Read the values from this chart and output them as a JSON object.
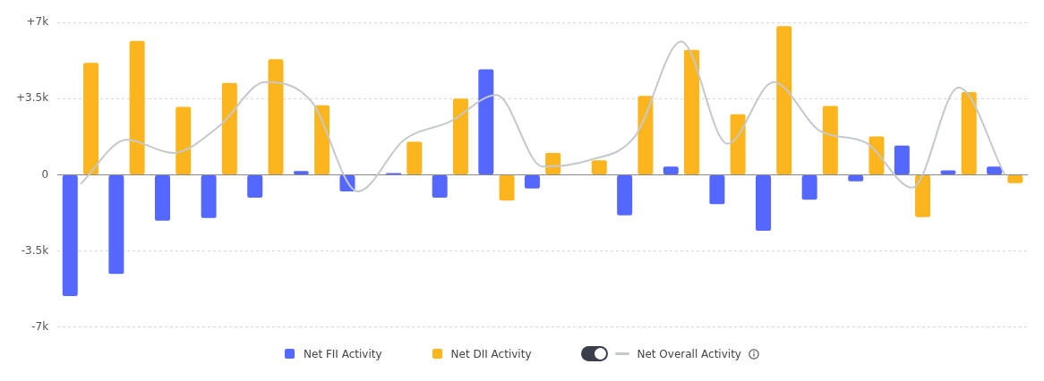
{
  "chart_data": {
    "type": "bar",
    "categories": [
      null,
      null,
      null,
      null,
      null,
      null,
      null,
      null,
      null,
      null,
      null,
      null,
      null,
      null,
      null,
      null,
      null,
      null,
      null,
      null,
      null
    ],
    "series": [
      {
        "name": "Net FII Activity",
        "color": "#5468ff",
        "values": [
          -5.57,
          -4.55,
          -2.11,
          -1.98,
          -1.05,
          0.17,
          -0.76,
          0.08,
          -1.05,
          4.85,
          -0.63,
          0,
          -1.86,
          0.38,
          -1.35,
          -2.57,
          -1.14,
          -0.3,
          1.35,
          0.21,
          0.38
        ]
      },
      {
        "name": "Net DII Activity",
        "color": "#fdb51e",
        "values": [
          5.15,
          6.16,
          3.12,
          4.22,
          5.31,
          3.2,
          0,
          1.52,
          3.5,
          -1.18,
          1.01,
          0.67,
          3.63,
          5.74,
          2.78,
          6.83,
          3.16,
          1.77,
          -1.94,
          3.8,
          -0.38
        ]
      },
      {
        "name": "Net Overall Activity",
        "type": "line",
        "color": "#c3c9cc",
        "values": [
          -0.42,
          1.61,
          1.01,
          2.24,
          4.26,
          3.37,
          -0.76,
          1.6,
          2.45,
          3.67,
          0.38,
          0.67,
          1.77,
          6.12,
          1.43,
          4.26,
          2.02,
          1.47,
          -0.59,
          4.01,
          0
        ]
      }
    ],
    "ylim": [
      -7,
      7
    ],
    "yticks": [
      {
        "value": -7,
        "label": "-7k"
      },
      {
        "value": -3.5,
        "label": "-3.5k"
      },
      0,
      {
        "value": 3.5,
        "label": "+3.5k"
      },
      {
        "value": 7,
        "label": "+7k"
      }
    ],
    "grid": "y",
    "legend": "bottom",
    "tick_labels": "y",
    "marker": "none"
  }
}
